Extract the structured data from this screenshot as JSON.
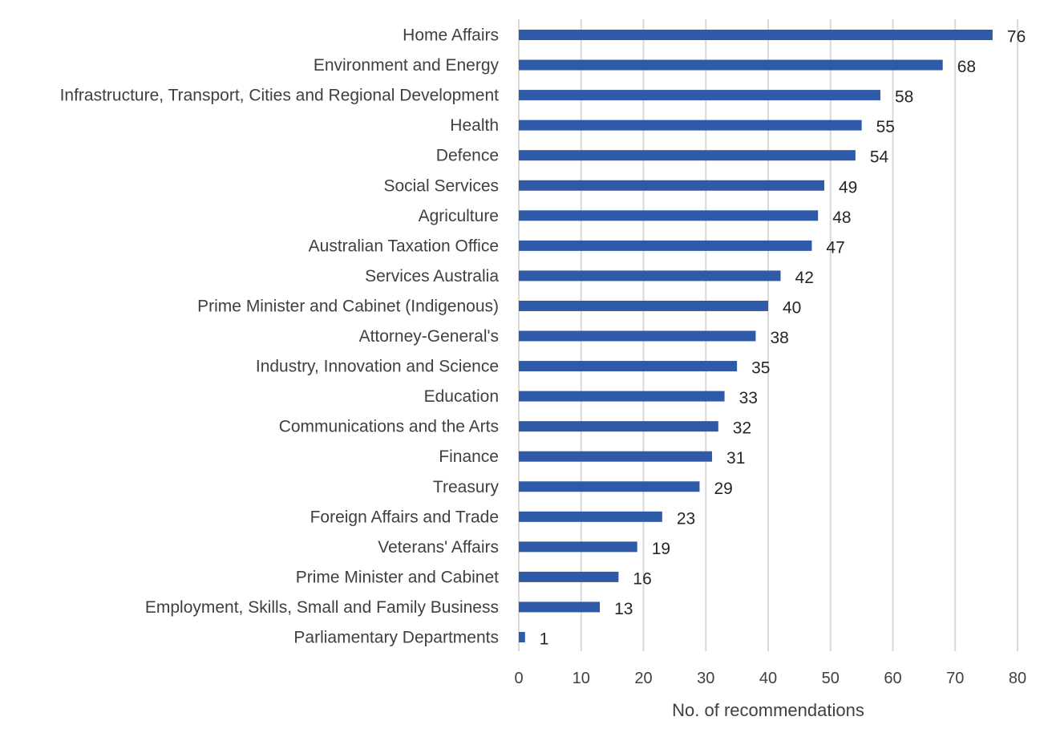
{
  "chart_data": {
    "type": "bar",
    "orientation": "horizontal",
    "categories": [
      "Home Affairs",
      "Environment and Energy",
      "Infrastructure, Transport, Cities and Regional Development",
      "Health",
      "Defence",
      "Social Services",
      "Agriculture",
      "Australian Taxation Office",
      "Services Australia",
      "Prime Minister and Cabinet (Indigenous)",
      "Attorney-General's",
      "Industry, Innovation and Science",
      "Education",
      "Communications and the Arts",
      "Finance",
      "Treasury",
      "Foreign Affairs and Trade",
      "Veterans' Affairs",
      "Prime Minister and Cabinet",
      "Employment, Skills, Small and Family Business",
      "Parliamentary Departments"
    ],
    "values": [
      76,
      68,
      58,
      55,
      54,
      49,
      48,
      47,
      42,
      40,
      38,
      35,
      33,
      32,
      31,
      29,
      23,
      19,
      16,
      13,
      1
    ],
    "xlabel": "No. of recommendations",
    "ylabel": "",
    "title": "",
    "xlim": [
      0,
      80
    ],
    "xticks": [
      0,
      10,
      20,
      30,
      40,
      50,
      60,
      70,
      80
    ],
    "grid": "vertical",
    "legend": "none",
    "bar_color": "#2e5aa8",
    "grid_color": "#d9d9d9"
  }
}
